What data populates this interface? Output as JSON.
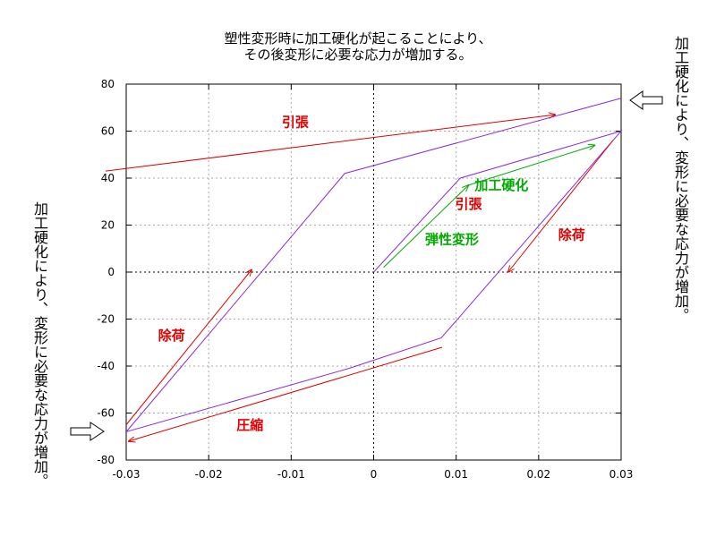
{
  "header": {
    "title_line1": "塑性変形時に加工硬化が起こることにより、",
    "title_line2": "その後変形に必要な応力が増加する。"
  },
  "side_notes": {
    "right": "加工硬化により、変形に必要な応力が増加。",
    "left": "加工硬化により、変形に必要な応力が増加。"
  },
  "colors": {
    "curve": "#8a2be2",
    "red_arrow": "#e00000",
    "green_arrow": "#00aa00",
    "red_label": "#e00000",
    "green_label": "#00aa00",
    "grid": "#aaaaaa"
  },
  "chart_data": {
    "type": "line",
    "title": "",
    "xlabel": "",
    "ylabel": "",
    "xlim": [
      -0.03,
      0.03
    ],
    "ylim": [
      -80,
      80
    ],
    "x_ticks": [
      -0.03,
      -0.02,
      -0.01,
      0,
      0.01,
      0.02,
      0.03
    ],
    "y_ticks": [
      -80,
      -60,
      -40,
      -20,
      0,
      20,
      40,
      60,
      80
    ],
    "x_tick_labels": [
      "-0.03",
      "-0.02",
      "-0.01",
      "0",
      "0.01",
      "0.02",
      "0.03"
    ],
    "y_tick_labels": [
      "-80",
      "-60",
      "-40",
      "-20",
      "0",
      "20",
      "40",
      "60",
      "80"
    ],
    "grid": true,
    "series": [
      {
        "x": [
          0.0,
          0.0105,
          0.03,
          0.0082,
          -0.003,
          -0.03,
          -0.0035,
          0.03
        ],
        "y": [
          0,
          40,
          60,
          -28,
          -41,
          -68,
          42,
          74
        ]
      }
    ],
    "arrows": [
      {
        "color": "green",
        "from": [
          0.0012,
          2
        ],
        "to": [
          0.0115,
          37
        ]
      },
      {
        "color": "green",
        "from": [
          0.0115,
          37
        ],
        "to": [
          0.0268,
          54
        ]
      },
      {
        "color": "red",
        "from": [
          -0.0325,
          43
        ],
        "to": [
          0.022,
          67
        ]
      },
      {
        "color": "red",
        "from": [
          0.029,
          56
        ],
        "to": [
          0.0163,
          0
        ]
      },
      {
        "color": "red",
        "from": [
          0.0083,
          -32
        ],
        "to": [
          -0.0297,
          -72
        ]
      },
      {
        "color": "red",
        "from": [
          -0.03,
          -65
        ],
        "to": [
          -0.0148,
          1
        ]
      }
    ],
    "annotations": [
      {
        "text": "引張",
        "x": -0.0095,
        "y": 62,
        "color": "red"
      },
      {
        "text": "加工硬化",
        "x": 0.0155,
        "y": 35,
        "color": "green"
      },
      {
        "text": "引張",
        "x": 0.0115,
        "y": 27,
        "color": "red"
      },
      {
        "text": "弾性変形",
        "x": 0.0095,
        "y": 12,
        "color": "green"
      },
      {
        "text": "除荷",
        "x": 0.024,
        "y": 14,
        "color": "red"
      },
      {
        "text": "除荷",
        "x": -0.0245,
        "y": -29,
        "color": "red"
      },
      {
        "text": "圧縮",
        "x": -0.015,
        "y": -67,
        "color": "red"
      }
    ]
  }
}
